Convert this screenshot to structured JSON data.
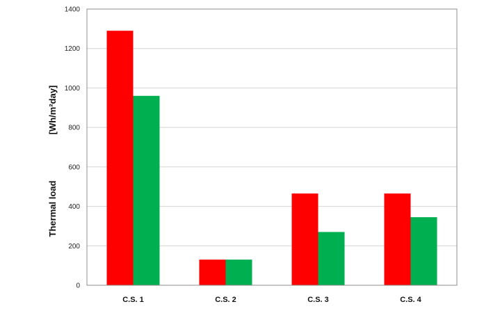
{
  "chart_data": {
    "type": "bar",
    "categories": [
      "C.S. 1",
      "C.S. 2",
      "C.S. 3",
      "C.S. 4"
    ],
    "series": [
      {
        "values": [
          1290,
          130,
          465,
          465
        ],
        "color": "#ff0000"
      },
      {
        "values": [
          960,
          130,
          270,
          345
        ],
        "color": "#00b050"
      }
    ],
    "ylabel_main": "Thermal load",
    "ylabel_unit": "[Wh/m²day]",
    "ylim": [
      0,
      1400
    ],
    "yticks": [
      0,
      200,
      400,
      600,
      800,
      1000,
      1200,
      1400
    ],
    "grid": true,
    "title": "",
    "xlabel": ""
  }
}
